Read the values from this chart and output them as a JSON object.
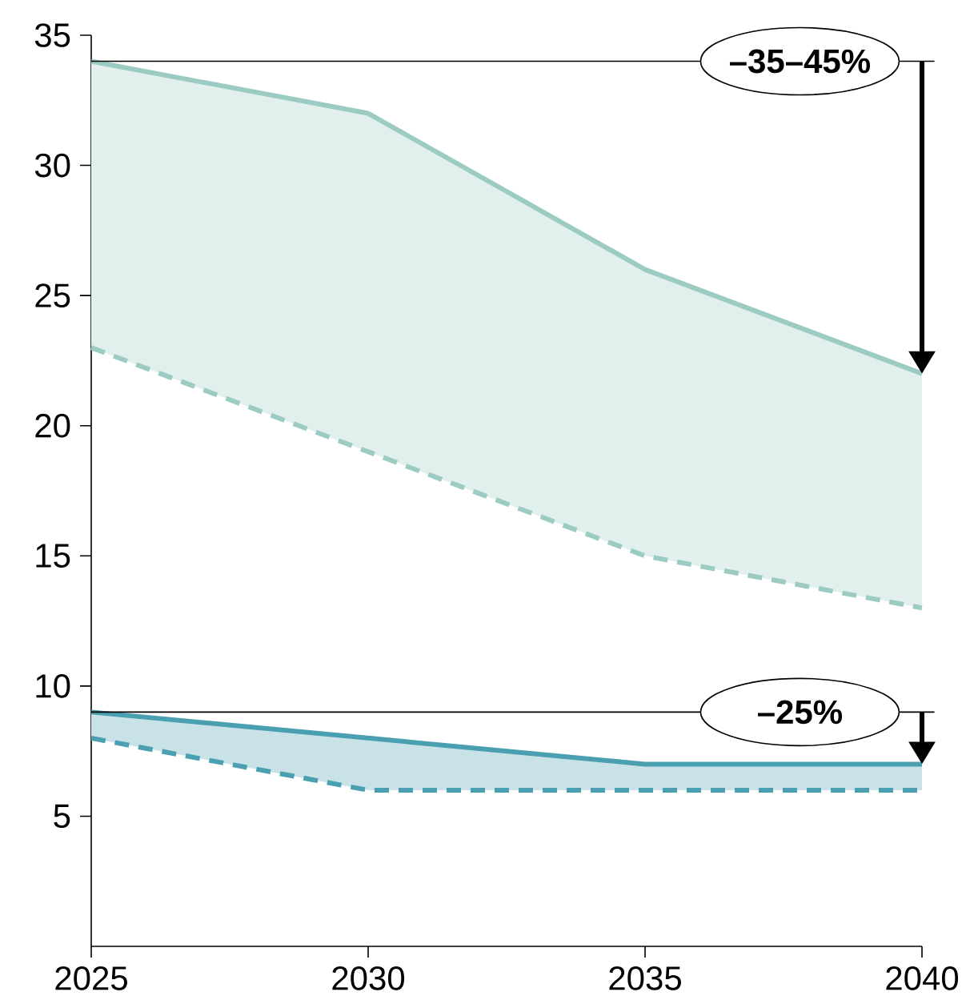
{
  "chart_data": {
    "type": "line",
    "x": [
      2025,
      2030,
      2035,
      2040
    ],
    "series": [
      {
        "color": "#9ccbc4",
        "values": [
          34,
          32,
          26,
          22
        ],
        "lower": [
          23,
          19,
          15,
          13
        ],
        "upper": [
          34,
          32,
          26,
          22
        ],
        "line_style": "solid"
      },
      {
        "color": "#9ccbc4",
        "values": [
          23,
          19,
          15,
          13
        ],
        "line_style": "dashed"
      },
      {
        "color": "#4a9fb0",
        "values": [
          9,
          8,
          7,
          7
        ],
        "lower": [
          8,
          6,
          6,
          6
        ],
        "upper": [
          9,
          8,
          7,
          7
        ],
        "line_style": "solid"
      },
      {
        "color": "#4a9fb0",
        "values": [
          8,
          6,
          6,
          6
        ],
        "line_style": "dashed"
      }
    ],
    "xlim": [
      2025,
      2040
    ],
    "xticks": [
      2025,
      2030,
      2035,
      2040
    ],
    "ylim": [
      0,
      35
    ],
    "yticks": [
      5,
      10,
      15,
      20,
      25,
      30,
      35
    ],
    "ref_lines": [
      {
        "axis": "y",
        "value": 34,
        "label": "–35–45%"
      },
      {
        "axis": "y",
        "value": 9,
        "label": "–25%"
      }
    ],
    "grid": false,
    "marker": "none"
  }
}
